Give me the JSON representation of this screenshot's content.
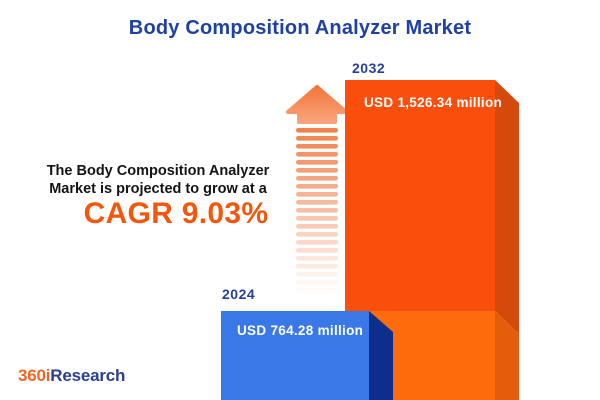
{
  "title": "Body Composition Analyzer Market",
  "subtitle": {
    "line1": "The Body Composition Analyzer",
    "line2": "Market is projected to grow at a",
    "cagr_label": "CAGR 9.03%"
  },
  "chart_data": {
    "type": "bar",
    "title": "Body Composition Analyzer Market",
    "categories": [
      "2024",
      "2032"
    ],
    "values": [
      764.28,
      1526.34
    ],
    "value_labels": [
      "USD 764.28 million",
      "USD 1,526.34 million"
    ],
    "unit": "USD million",
    "cagr_percent": 9.03,
    "series": [
      {
        "name": "Market size",
        "values": [
          764.28,
          1526.34
        ]
      }
    ],
    "bar_colors": [
      "#3A78E8",
      "#FA4E0C"
    ],
    "legend": "none",
    "grid": false,
    "annotations": [
      "upward striped growth arrow between text and 2032 bar"
    ]
  },
  "branding": {
    "logo_part1": "360i",
    "logo_part2": "Research"
  },
  "colors": {
    "title_blue": "#1F41A5",
    "year_label_blue": "#253F9E",
    "cagr_orange": "#F3570C",
    "bar_blue_front": "#3A78E8",
    "bar_blue_side": "#0D2F8B",
    "bar_orange_front": "#FA4E0C",
    "bar_orange_side": "#D5490B",
    "bar_orange_light_front": "#FD6B0C",
    "bar_orange_light_side": "#E55C0B",
    "arrow_coral": "#F3763B",
    "logo_orange": "#F26522",
    "logo_blue": "#2B3F90",
    "value_text": "#FFFFFF"
  }
}
